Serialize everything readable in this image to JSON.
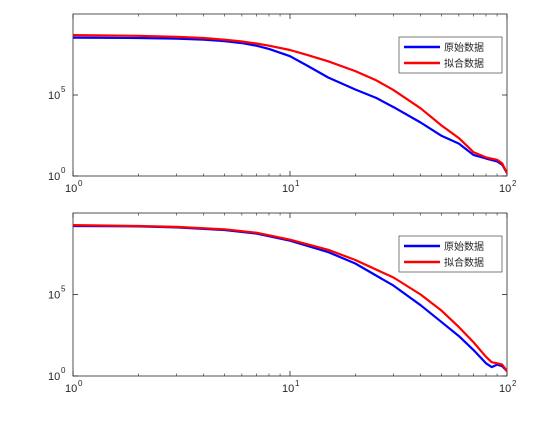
{
  "chart_data": [
    {
      "type": "line",
      "x_scale": "log",
      "y_scale": "log",
      "xlim": [
        1,
        100
      ],
      "ylim": [
        1,
        10000000000.0
      ],
      "x_ticks": [
        {
          "base": "10",
          "exp": "0"
        },
        {
          "base": "10",
          "exp": "1"
        },
        {
          "base": "10",
          "exp": "2"
        }
      ],
      "y_ticks": [
        {
          "base": "10",
          "exp": "0"
        },
        {
          "base": "10",
          "exp": "5"
        }
      ],
      "legend": {
        "position": "top-right"
      },
      "grid": false,
      "series": [
        {
          "name": "原始数据",
          "color": "#0000ff",
          "x": [
            1,
            2,
            3,
            4,
            5,
            6,
            7,
            8,
            10,
            12,
            15,
            20,
            25,
            30,
            40,
            50,
            60,
            70,
            80,
            90,
            95,
            100
          ],
          "y": [
            350000000.0,
            330000000.0,
            300000000.0,
            260000000.0,
            210000000.0,
            160000000.0,
            110000000.0,
            70000000.0,
            25000000.0,
            6500000.0,
            1200000.0,
            220000.0,
            65000.0,
            18000.0,
            2000.0,
            300,
            100,
            20,
            12,
            8,
            5,
            1.5
          ]
        },
        {
          "name": "拟合数据",
          "color": "#ff0000",
          "x": [
            1,
            2,
            3,
            4,
            5,
            6,
            7,
            8,
            10,
            12,
            15,
            20,
            25,
            30,
            40,
            50,
            60,
            70,
            80,
            90,
            95,
            100
          ],
          "y": [
            500000000.0,
            450000000.0,
            390000000.0,
            330000000.0,
            260000000.0,
            200000000.0,
            150000000.0,
            110000000.0,
            60000000.0,
            30000000.0,
            12000000.0,
            3000000.0,
            800000.0,
            200000.0,
            15000.0,
            1300.0,
            220,
            30,
            14,
            10,
            6,
            1.5
          ]
        }
      ]
    },
    {
      "type": "line",
      "x_scale": "log",
      "y_scale": "log",
      "xlim": [
        1,
        100
      ],
      "ylim": [
        1,
        10000000000.0
      ],
      "x_ticks": [
        {
          "base": "10",
          "exp": "0"
        },
        {
          "base": "10",
          "exp": "1"
        },
        {
          "base": "10",
          "exp": "2"
        }
      ],
      "y_ticks": [
        {
          "base": "10",
          "exp": "0"
        },
        {
          "base": "10",
          "exp": "5"
        }
      ],
      "legend": {
        "position": "top-right"
      },
      "grid": false,
      "series": [
        {
          "name": "原始数据",
          "color": "#0000ff",
          "x": [
            1,
            2,
            3,
            5,
            7,
            10,
            15,
            20,
            30,
            40,
            50,
            60,
            70,
            80,
            85,
            90,
            95,
            100
          ],
          "y": [
            1600000000.0,
            1500000000.0,
            1300000000.0,
            900000000.0,
            550000000.0,
            200000000.0,
            40000000.0,
            8000000.0,
            350000.0,
            22000.0,
            2000.0,
            280,
            40,
            6,
            3.5,
            5,
            4,
            2
          ]
        },
        {
          "name": "拟合数据",
          "color": "#ff0000",
          "x": [
            1,
            2,
            3,
            5,
            7,
            10,
            15,
            20,
            30,
            40,
            50,
            60,
            70,
            80,
            85,
            90,
            95,
            100
          ],
          "y": [
            1800000000.0,
            1600000000.0,
            1400000000.0,
            1000000000.0,
            620000000.0,
            230000000.0,
            55000000.0,
            13000000.0,
            1100000.0,
            100000.0,
            10000.0,
            1000.0,
            120,
            15,
            7,
            6,
            5,
            2
          ]
        }
      ]
    }
  ]
}
